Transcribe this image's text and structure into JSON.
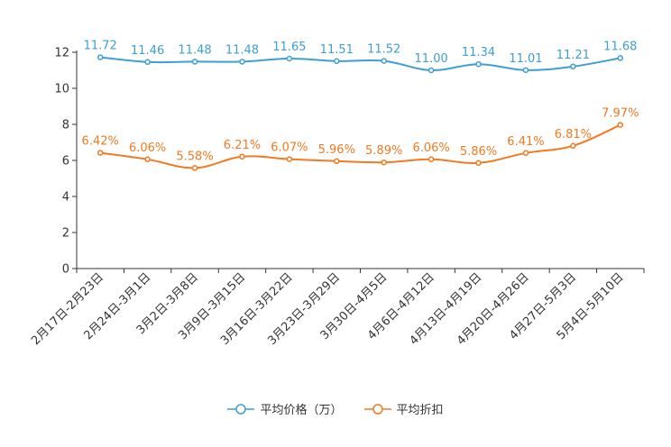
{
  "chart_data": {
    "type": "line",
    "title": "",
    "xlabel": "",
    "ylabel": "",
    "ylim": [
      0,
      12
    ],
    "yticks": [
      0,
      2,
      4,
      6,
      8,
      10,
      12
    ],
    "categories": [
      "2月17日-2月23日",
      "2月24日-3月1日",
      "3月2日-3月8日",
      "3月9日-3月15日",
      "3月16日-3月22日",
      "3月23日-3月29日",
      "3月30日-4月5日",
      "4月6日-4月12日",
      "4月13日-4月19日",
      "4月20日-4月26日",
      "4月27日-5月3日",
      "5月4日-5月10日"
    ],
    "series": [
      {
        "name": "平均价格（万）",
        "color": "#3d9fd3",
        "values": [
          11.72,
          11.46,
          11.48,
          11.48,
          11.65,
          11.51,
          11.52,
          11.0,
          11.34,
          11.01,
          11.21,
          11.68
        ],
        "labels": [
          "11.72",
          "11.46",
          "11.48",
          "11.48",
          "11.65",
          "11.51",
          "11.52",
          "11.00",
          "11.34",
          "11.01",
          "11.21",
          "11.68"
        ]
      },
      {
        "name": "平均折扣",
        "color": "#f47920",
        "values": [
          6.42,
          6.06,
          5.58,
          6.21,
          6.07,
          5.96,
          5.89,
          6.06,
          5.86,
          6.41,
          6.81,
          7.97
        ],
        "labels": [
          "6.42%",
          "6.06%",
          "5.58%",
          "6.21%",
          "6.07%",
          "5.96%",
          "5.89%",
          "6.06%",
          "5.86%",
          "6.41%",
          "6.81%",
          "7.97%"
        ]
      }
    ],
    "grid": false,
    "legend_position": "bottom-center"
  },
  "legend": {
    "items": [
      {
        "label": "平均价格（万）",
        "color": "#3d9fd3"
      },
      {
        "label": "平均折扣",
        "color": "#f47920"
      }
    ]
  }
}
